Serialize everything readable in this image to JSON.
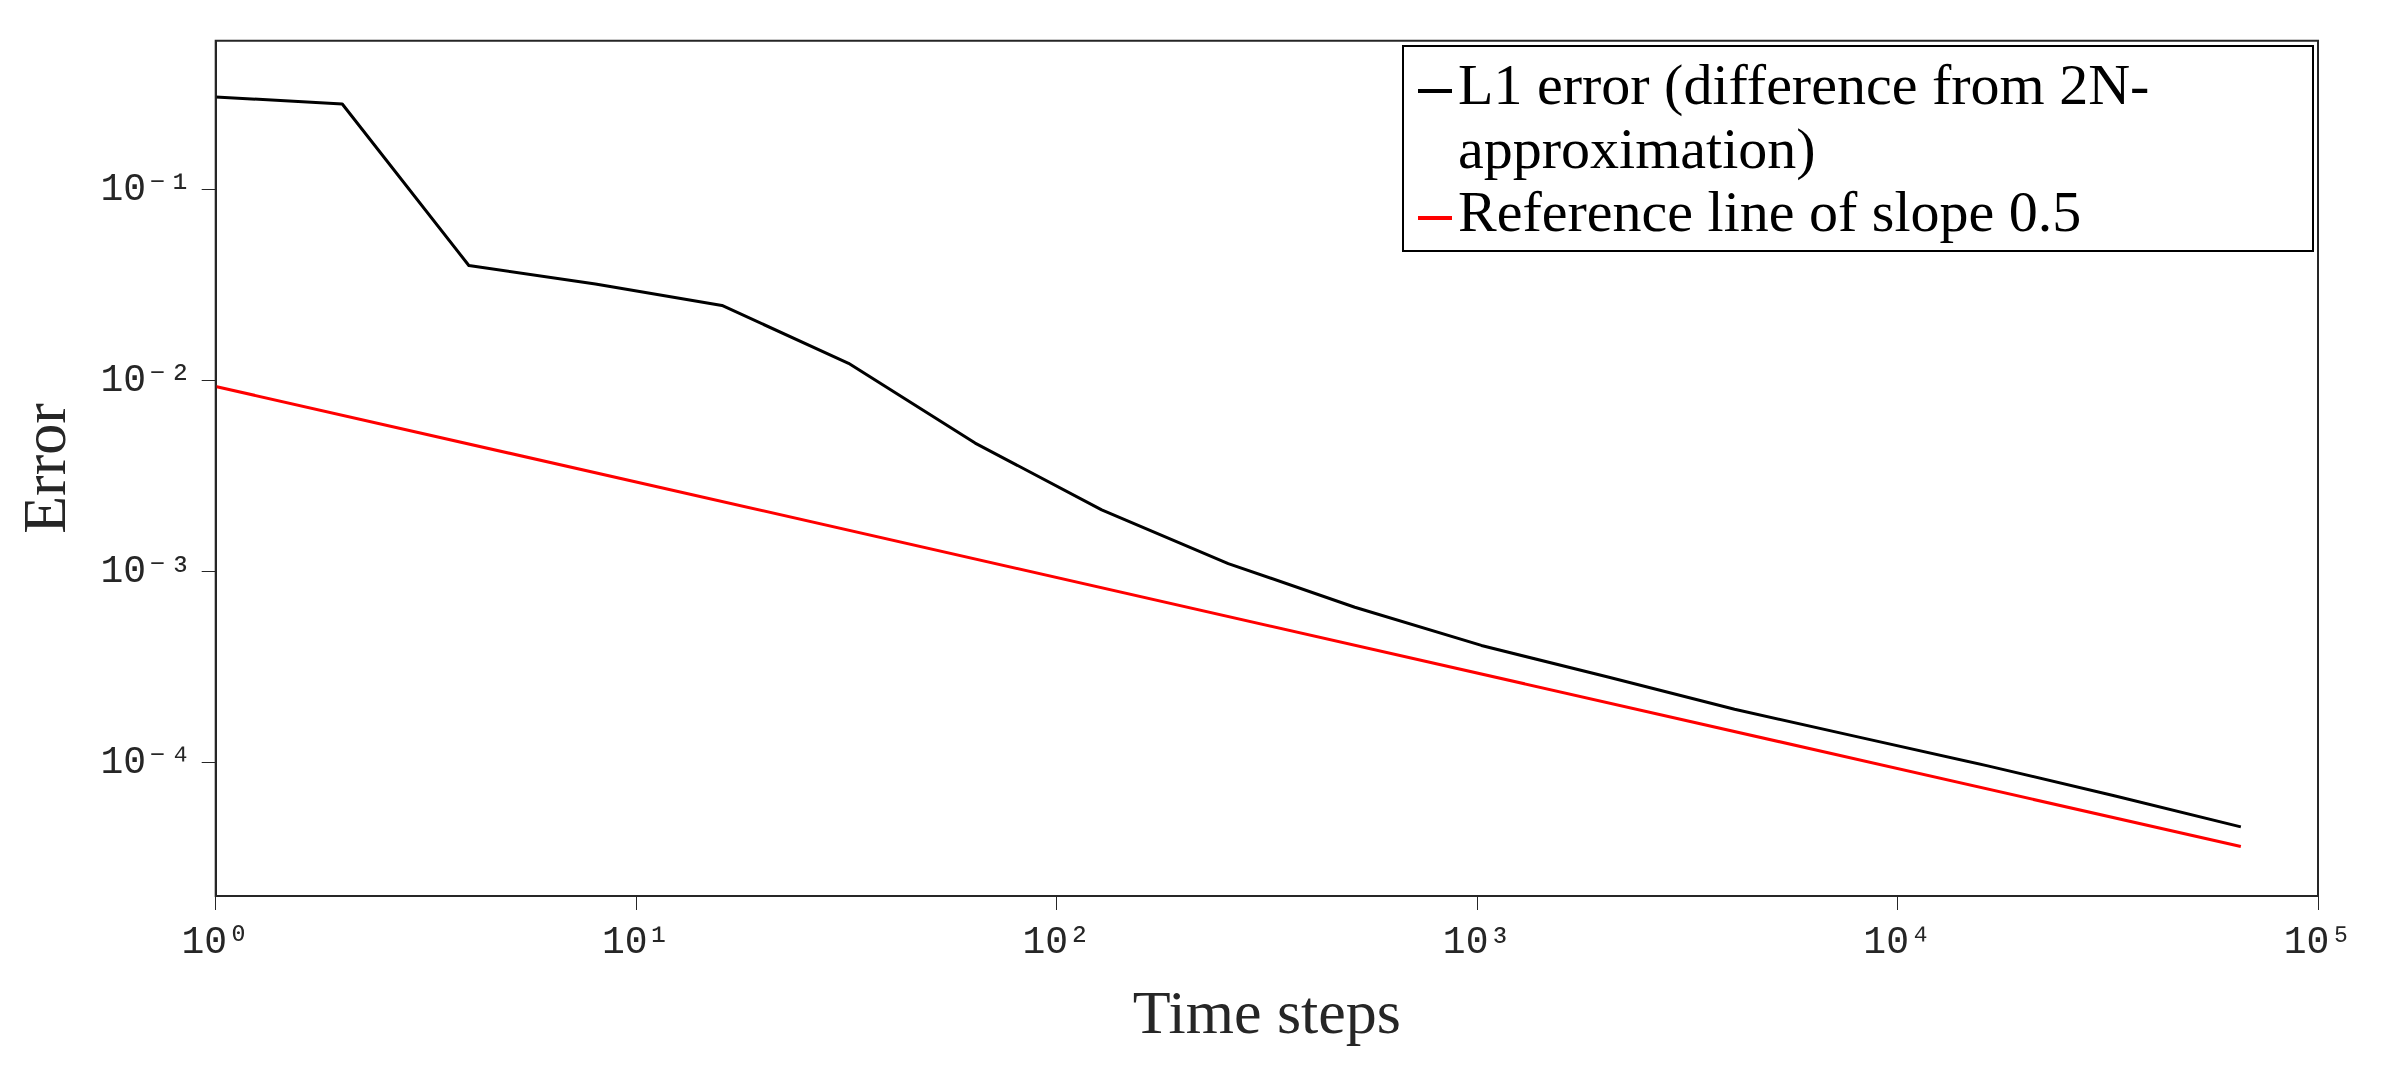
{
  "chart_data": {
    "type": "line",
    "xlabel": "Time steps",
    "ylabel": "Error",
    "log": "xy",
    "grid": false,
    "legend": "top right",
    "marker": "none",
    "line_style": "solid",
    "xlim": [
      1,
      100000
    ],
    "xticks": [
      {
        "value": 1,
        "label": "10⁰"
      },
      {
        "value": 10,
        "label": "10¹"
      },
      {
        "value": 100,
        "label": "10²"
      },
      {
        "value": 1000,
        "label": "10³"
      },
      {
        "value": 10000,
        "label": "10⁴"
      },
      {
        "value": 100000,
        "label": "10⁵"
      }
    ],
    "ylim": [
      2e-05,
      0.6
    ],
    "yticks": [
      {
        "value": 0.0001,
        "label": "10⁻⁴"
      },
      {
        "value": 0.001,
        "label": "10⁻³"
      },
      {
        "value": 0.01,
        "label": "10⁻²"
      },
      {
        "value": 0.1,
        "label": "10⁻¹"
      }
    ],
    "series": [
      {
        "name": "L1 error (difference from 2N-approximation)",
        "color": "#000000",
        "x": [
          1,
          2,
          4,
          8,
          16,
          32,
          64,
          128,
          256,
          512,
          1024,
          2048,
          4096,
          8192,
          16384,
          32768,
          65536
        ],
        "values": [
          0.305,
          0.28,
          0.04,
          0.032,
          0.0247,
          0.0123,
          0.0047,
          0.0021,
          0.0011,
          0.00065,
          0.00041,
          0.00028,
          0.00019,
          0.000135,
          9.6e-05,
          6.7e-05,
          4.6e-05
        ]
      },
      {
        "name": "Reference line of slope 0.5",
        "color": "#ff0000",
        "x": [
          1,
          65536
        ],
        "values": [
          0.0093,
          3.63e-05
        ]
      }
    ]
  }
}
